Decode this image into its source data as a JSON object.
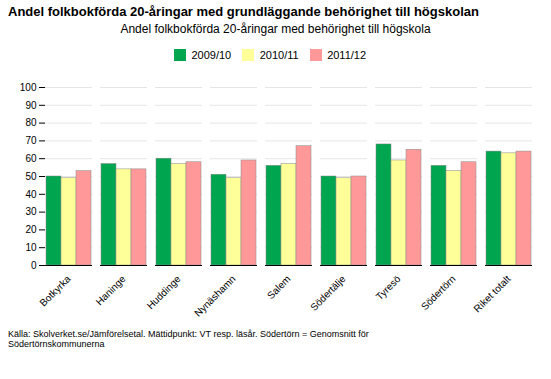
{
  "chart_data": {
    "type": "bar",
    "title": "Andel folkbokförda 20-åringar med grundläggande behörighet till högskolan",
    "subtitle": "Andel folkbokförda 20-åringar med behörighet till högskola",
    "caption": "Källa: Skolverket.se/Jämförelsetal. Mättidpunkt: VT resp. läsår. Södertörn = Genomsnitt för\nSödertörnskommunerna",
    "categories": [
      "Botkyrka",
      "Haninge",
      "Huddinge",
      "Nynäshamn",
      "Salem",
      "Södertälje",
      "Tyresö",
      "Södertörn",
      "Riket totalt"
    ],
    "series": [
      {
        "name": "2009/10",
        "color": "#00A550",
        "values": [
          50,
          57,
          60,
          51,
          56,
          50,
          68,
          56,
          64
        ]
      },
      {
        "name": "2010/11",
        "color": "#FFFF99",
        "values": [
          49,
          54,
          57,
          49,
          57,
          49,
          59,
          53,
          63
        ]
      },
      {
        "name": "2011/12",
        "color": "#FF9999",
        "values": [
          53,
          54,
          58,
          59,
          67,
          50,
          65,
          58,
          64
        ]
      }
    ],
    "ylim": [
      0,
      100
    ],
    "yticks": [
      0,
      10,
      20,
      30,
      40,
      50,
      60,
      70,
      80,
      90,
      100
    ],
    "grid": true,
    "legend": "top"
  }
}
